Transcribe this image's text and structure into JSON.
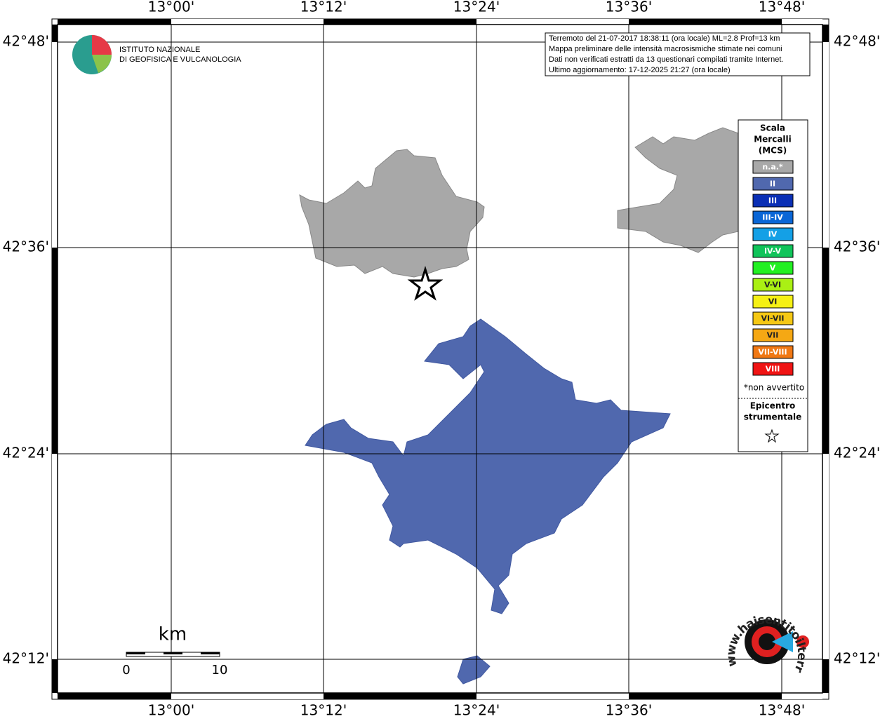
{
  "header": {
    "institute": [
      "ISTITUTO NAZIONALE",
      "DI GEOFISICA E VULCANOLOGIA"
    ]
  },
  "info": [
    "Terremoto del 21-07-2017 18:38:11 (ora locale) ML=2.8 Prof=13 km",
    "Mappa preliminare delle intensità macrosismiche stimate nei comuni",
    "Dati non verificati estratti da 13 questionari compilati tramite Internet.",
    "Ultimo aggiornamento: 17-12-2025 21:27 (ora locale)"
  ],
  "axes": {
    "lon": [
      "13°00'",
      "13°12'",
      "13°24'",
      "13°36'",
      "13°48'"
    ],
    "lat": [
      "42°48'",
      "42°36'",
      "42°24'",
      "42°12'"
    ]
  },
  "legend": {
    "title": [
      "Scala",
      "Mercalli",
      "(MCS)"
    ],
    "items": [
      {
        "label": "n.a.*",
        "color": "#a8a8a8"
      },
      {
        "label": "II",
        "color": "#5068ae"
      },
      {
        "label": "III",
        "color": "#0a2fb5"
      },
      {
        "label": "III-IV",
        "color": "#0a66d6"
      },
      {
        "label": "IV",
        "color": "#14a0e6"
      },
      {
        "label": "IV-V",
        "color": "#10c45a"
      },
      {
        "label": "V",
        "color": "#22f022"
      },
      {
        "label": "V-VI",
        "color": "#aaf014"
      },
      {
        "label": "VI",
        "color": "#f5f014"
      },
      {
        "label": "VI-VII",
        "color": "#f5c814"
      },
      {
        "label": "VII",
        "color": "#f5a814"
      },
      {
        "label": "VII-VIII",
        "color": "#f07814"
      },
      {
        "label": "VIII",
        "color": "#f01414"
      }
    ],
    "note": "*non avvertito",
    "epicenter": [
      "Epicentro",
      "strumentale"
    ]
  },
  "scale_bar": {
    "unit": "km",
    "labels": [
      "0",
      "10"
    ]
  },
  "logo": {
    "url": "www.haisentitoilterremoto.it"
  }
}
